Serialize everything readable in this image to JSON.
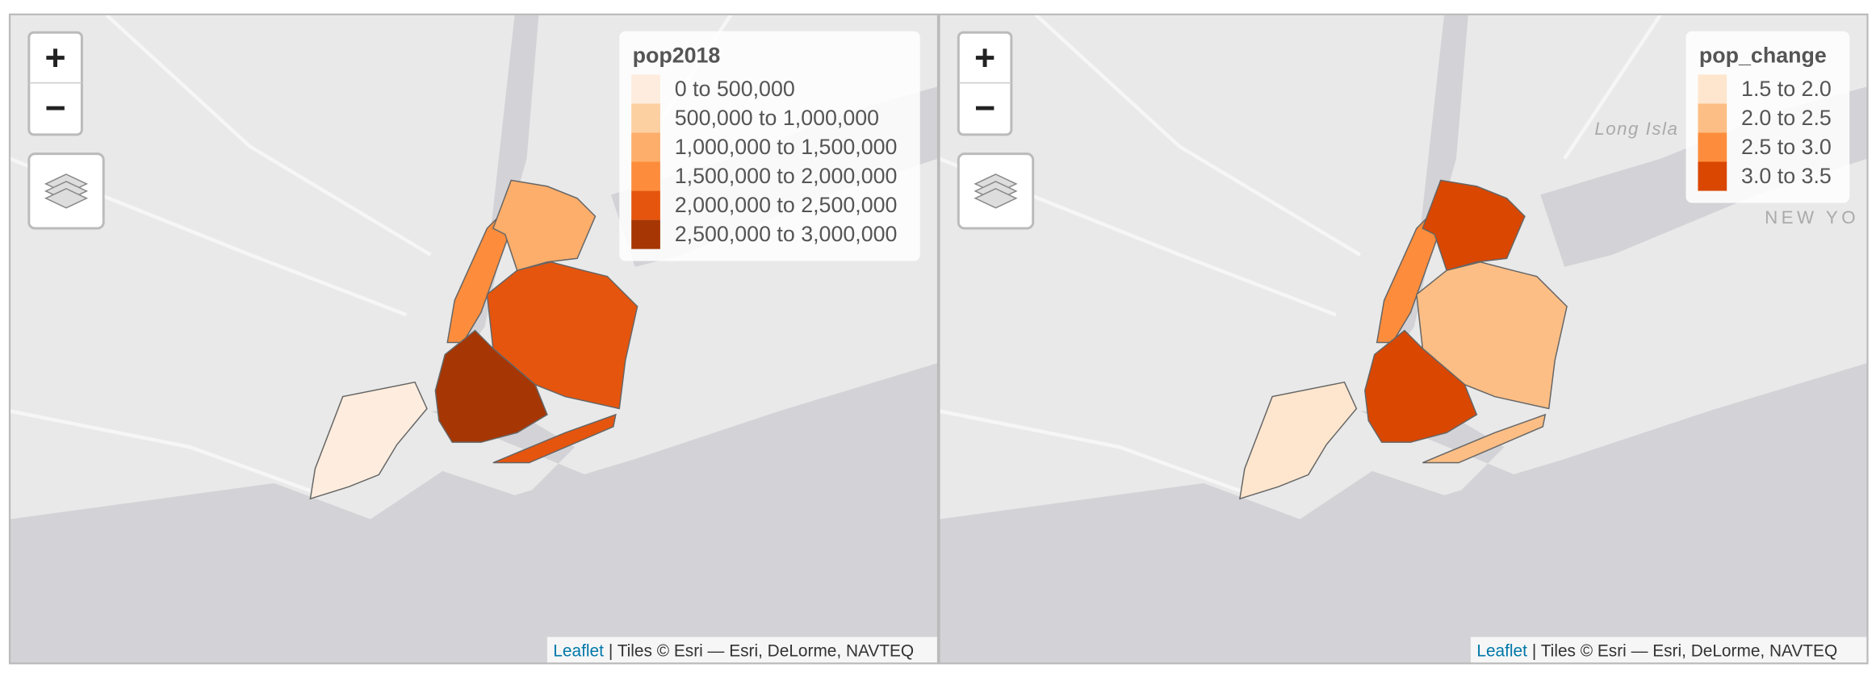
{
  "maps": [
    {
      "zoom_in": "+",
      "zoom_out": "−",
      "legend": {
        "title": "pop2018",
        "items": [
          {
            "label": "0 to 500,000",
            "color": "#feedde"
          },
          {
            "label": "500,000 to 1,000,000",
            "color": "#fdd0a2"
          },
          {
            "label": "1,000,000 to 1,500,000",
            "color": "#fdae6b"
          },
          {
            "label": "1,500,000 to 2,000,000",
            "color": "#fd8d3c"
          },
          {
            "label": "2,000,000 to 2,500,000",
            "color": "#e6550d"
          },
          {
            "label": "2,500,000 to 3,000,000",
            "color": "#a63603"
          }
        ]
      },
      "attribution": {
        "link": "Leaflet",
        "text": "| Tiles © Esri — Esri, DeLorme, NAVTEQ"
      },
      "basemap_labels": []
    },
    {
      "zoom_in": "+",
      "zoom_out": "−",
      "legend": {
        "title": "pop_change",
        "items": [
          {
            "label": "1.5 to 2.0",
            "color": "#fee6ce"
          },
          {
            "label": "2.0 to 2.5",
            "color": "#fdbe85"
          },
          {
            "label": "2.5 to 3.0",
            "color": "#fd8d3c"
          },
          {
            "label": "3.0 to 3.5",
            "color": "#d94701"
          }
        ]
      },
      "attribution": {
        "link": "Leaflet",
        "text": "| Tiles © Esri — Esri, DeLorme, NAVTEQ"
      },
      "basemap_labels": [
        "Long Isla",
        "NEW YO"
      ]
    }
  ]
}
